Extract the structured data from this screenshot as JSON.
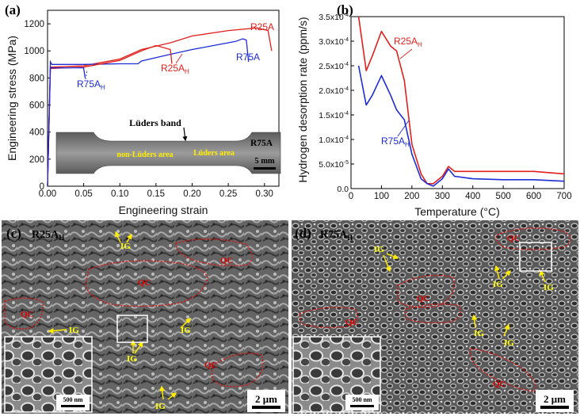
{
  "panel_a": {
    "label": "(a)",
    "xlabel": "Engineering strain",
    "ylabel": "Engineering stress (MPa)",
    "xticks": [
      "0.00",
      "0.05",
      "0.10",
      "0.15",
      "0.20",
      "0.25",
      "0.30"
    ],
    "yticks": [
      "0",
      "200",
      "400",
      "600",
      "800",
      "1000",
      "1200"
    ],
    "series_labels": {
      "r25a": "R25A",
      "r75a": "R75A",
      "r25ah": "R25A",
      "r75ah": "R75A",
      "sub": "H"
    },
    "inset": {
      "luders_band": "Lüders band",
      "non_luders": "non-Lüders area",
      "luders_area": "Lüders area",
      "sample": "R75A",
      "scale": "5 mm"
    }
  },
  "panel_b": {
    "label": "(b)",
    "xlabel": "Temperature (°C)",
    "ylabel": "Hydrogen desorption rate (ppm/s)",
    "xticks": [
      "0",
      "100",
      "200",
      "300",
      "400",
      "500",
      "600",
      "700"
    ],
    "yticks": [
      "0.0",
      "5.0x10",
      "1.0x10",
      "1.5x10",
      "2.0x10",
      "2.5x10",
      "3.0x10",
      "3.5x10"
    ],
    "ytick_exp": [
      "",
      "-5",
      "-4",
      "-4",
      "-4",
      "-4",
      "-4",
      "-4"
    ],
    "series_labels": {
      "r25ah": "R25A",
      "r75ah": "R75A",
      "sub": "H"
    }
  },
  "panel_c": {
    "label": "(c)",
    "title": "R25A",
    "sub": "H",
    "scale": "2 μm",
    "inset_scale": "500 nm",
    "qc": "QC",
    "ig": "IG"
  },
  "panel_d": {
    "label": "(d)",
    "title": "R75A",
    "sub": "H",
    "scale": "2 μm",
    "inset_scale": "500 nm",
    "qc": "QC",
    "ig": "IG"
  },
  "colors": {
    "red": "#e0201c",
    "blue": "#1d2cd6",
    "yellow": "#ffee00",
    "qc_red": "#dd1111"
  },
  "chart_data": [
    {
      "type": "line",
      "xlabel": "Engineering strain",
      "ylabel": "Engineering stress (MPa)",
      "xlim": [
        0,
        0.32
      ],
      "ylim": [
        0,
        1300
      ],
      "series": [
        {
          "name": "R25A",
          "color": "#e0201c",
          "x": [
            0,
            0.004,
            0.006,
            0.05,
            0.1,
            0.13,
            0.17,
            0.2,
            0.25,
            0.29,
            0.305,
            0.31
          ],
          "y": [
            0,
            880,
            880,
            890,
            940,
            1010,
            1060,
            1110,
            1150,
            1170,
            1150,
            1000
          ]
        },
        {
          "name": "R75A",
          "color": "#1d2cd6",
          "x": [
            0,
            0.004,
            0.006,
            0.05,
            0.1,
            0.125,
            0.13,
            0.17,
            0.2,
            0.23,
            0.26,
            0.27,
            0.275,
            0.278
          ],
          "y": [
            0,
            920,
            900,
            900,
            905,
            905,
            925,
            975,
            1010,
            1040,
            1070,
            1090,
            1080,
            920
          ]
        },
        {
          "name": "R25A_H",
          "color": "#e0201c",
          "x": [
            0,
            0.004,
            0.006,
            0.05,
            0.1,
            0.13,
            0.15,
            0.17,
            0.172
          ],
          "y": [
            0,
            870,
            870,
            880,
            930,
            1000,
            1040,
            1010,
            905
          ]
        },
        {
          "name": "R75A_H",
          "color": "#1d2cd6",
          "x": [
            0,
            0.004,
            0.006,
            0.03,
            0.05,
            0.052
          ],
          "y": [
            0,
            880,
            875,
            875,
            875,
            800
          ]
        }
      ]
    },
    {
      "type": "line",
      "xlabel": "Temperature (°C)",
      "ylabel": "Hydrogen desorption rate (ppm/s)",
      "xlim": [
        0,
        700
      ],
      "ylim": [
        0,
        0.00035
      ],
      "series": [
        {
          "name": "R25A_H",
          "color": "#e0201c",
          "x": [
            25,
            50,
            70,
            100,
            130,
            150,
            175,
            200,
            230,
            250,
            270,
            300,
            320,
            340,
            400,
            500,
            600,
            700
          ],
          "y": [
            0.00035,
            0.00024,
            0.00027,
            0.00032,
            0.00029,
            0.00028,
            0.00022,
            9e-05,
            3e-05,
            1e-05,
            1e-05,
            2.5e-05,
            4.5e-05,
            3.5e-05,
            3.5e-05,
            3.5e-05,
            3.5e-05,
            3e-05
          ]
        },
        {
          "name": "R75A_H",
          "color": "#1d2cd6",
          "x": [
            25,
            50,
            70,
            100,
            130,
            150,
            175,
            200,
            230,
            250,
            270,
            300,
            320,
            340,
            400,
            500,
            600,
            700
          ],
          "y": [
            0.00025,
            0.00017,
            0.00019,
            0.00023,
            0.00019,
            0.00016,
            0.00014,
            7e-05,
            2e-05,
            1e-05,
            5e-06,
            2e-05,
            4e-05,
            2.5e-05,
            2e-05,
            1.8e-05,
            1.8e-05,
            1.5e-05
          ]
        }
      ]
    }
  ]
}
